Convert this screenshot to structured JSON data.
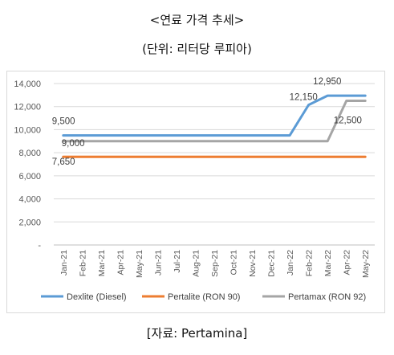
{
  "header": {
    "title": "<연료 가격 추세>",
    "unit_note": "(단위: 리터당 루피아)"
  },
  "source": "[자료: Pertamina]",
  "chart_data": {
    "type": "line",
    "categories": [
      "Jan-21",
      "Feb-21",
      "Mar-21",
      "Apr-21",
      "May-21",
      "Jun-21",
      "Jul-21",
      "Aug-21",
      "Sep-21",
      "Oct-21",
      "Nov-21",
      "Dec-21",
      "Jan-22",
      "Feb-22",
      "Mar-22",
      "Apr-22",
      "May-22"
    ],
    "ylim": [
      0,
      14000
    ],
    "yticks": [
      "-",
      "2,000",
      "4,000",
      "6,000",
      "8,000",
      "10,000",
      "12,000",
      "14,000"
    ],
    "grid": true,
    "legend_position": "bottom",
    "series": [
      {
        "name": "Dexlite (Diesel)",
        "color": "#5B9BD5",
        "values": [
          9500,
          9500,
          9500,
          9500,
          9500,
          9500,
          9500,
          9500,
          9500,
          9500,
          9500,
          9500,
          9500,
          12150,
          12950,
          12950,
          12950
        ]
      },
      {
        "name": "Pertalite (RON 90)",
        "color": "#ED7D31",
        "values": [
          7650,
          7650,
          7650,
          7650,
          7650,
          7650,
          7650,
          7650,
          7650,
          7650,
          7650,
          7650,
          7650,
          7650,
          7650,
          7650,
          7650
        ]
      },
      {
        "name": "Pertamax (RON 92)",
        "color": "#A5A5A5",
        "values": [
          9000,
          9000,
          9000,
          9000,
          9000,
          9000,
          9000,
          9000,
          9000,
          9000,
          9000,
          9000,
          9000,
          9000,
          9000,
          12500,
          12500
        ]
      }
    ],
    "annotations": [
      {
        "text": "9,500",
        "series": 0,
        "index": 0
      },
      {
        "text": "9,000",
        "series": 2,
        "index": 0
      },
      {
        "text": "7,650",
        "series": 1,
        "index": 0
      },
      {
        "text": "12,150",
        "series": 0,
        "index": 13
      },
      {
        "text": "12,950",
        "series": 0,
        "index": 14
      },
      {
        "text": "12,500",
        "series": 2,
        "index": 15
      }
    ]
  }
}
